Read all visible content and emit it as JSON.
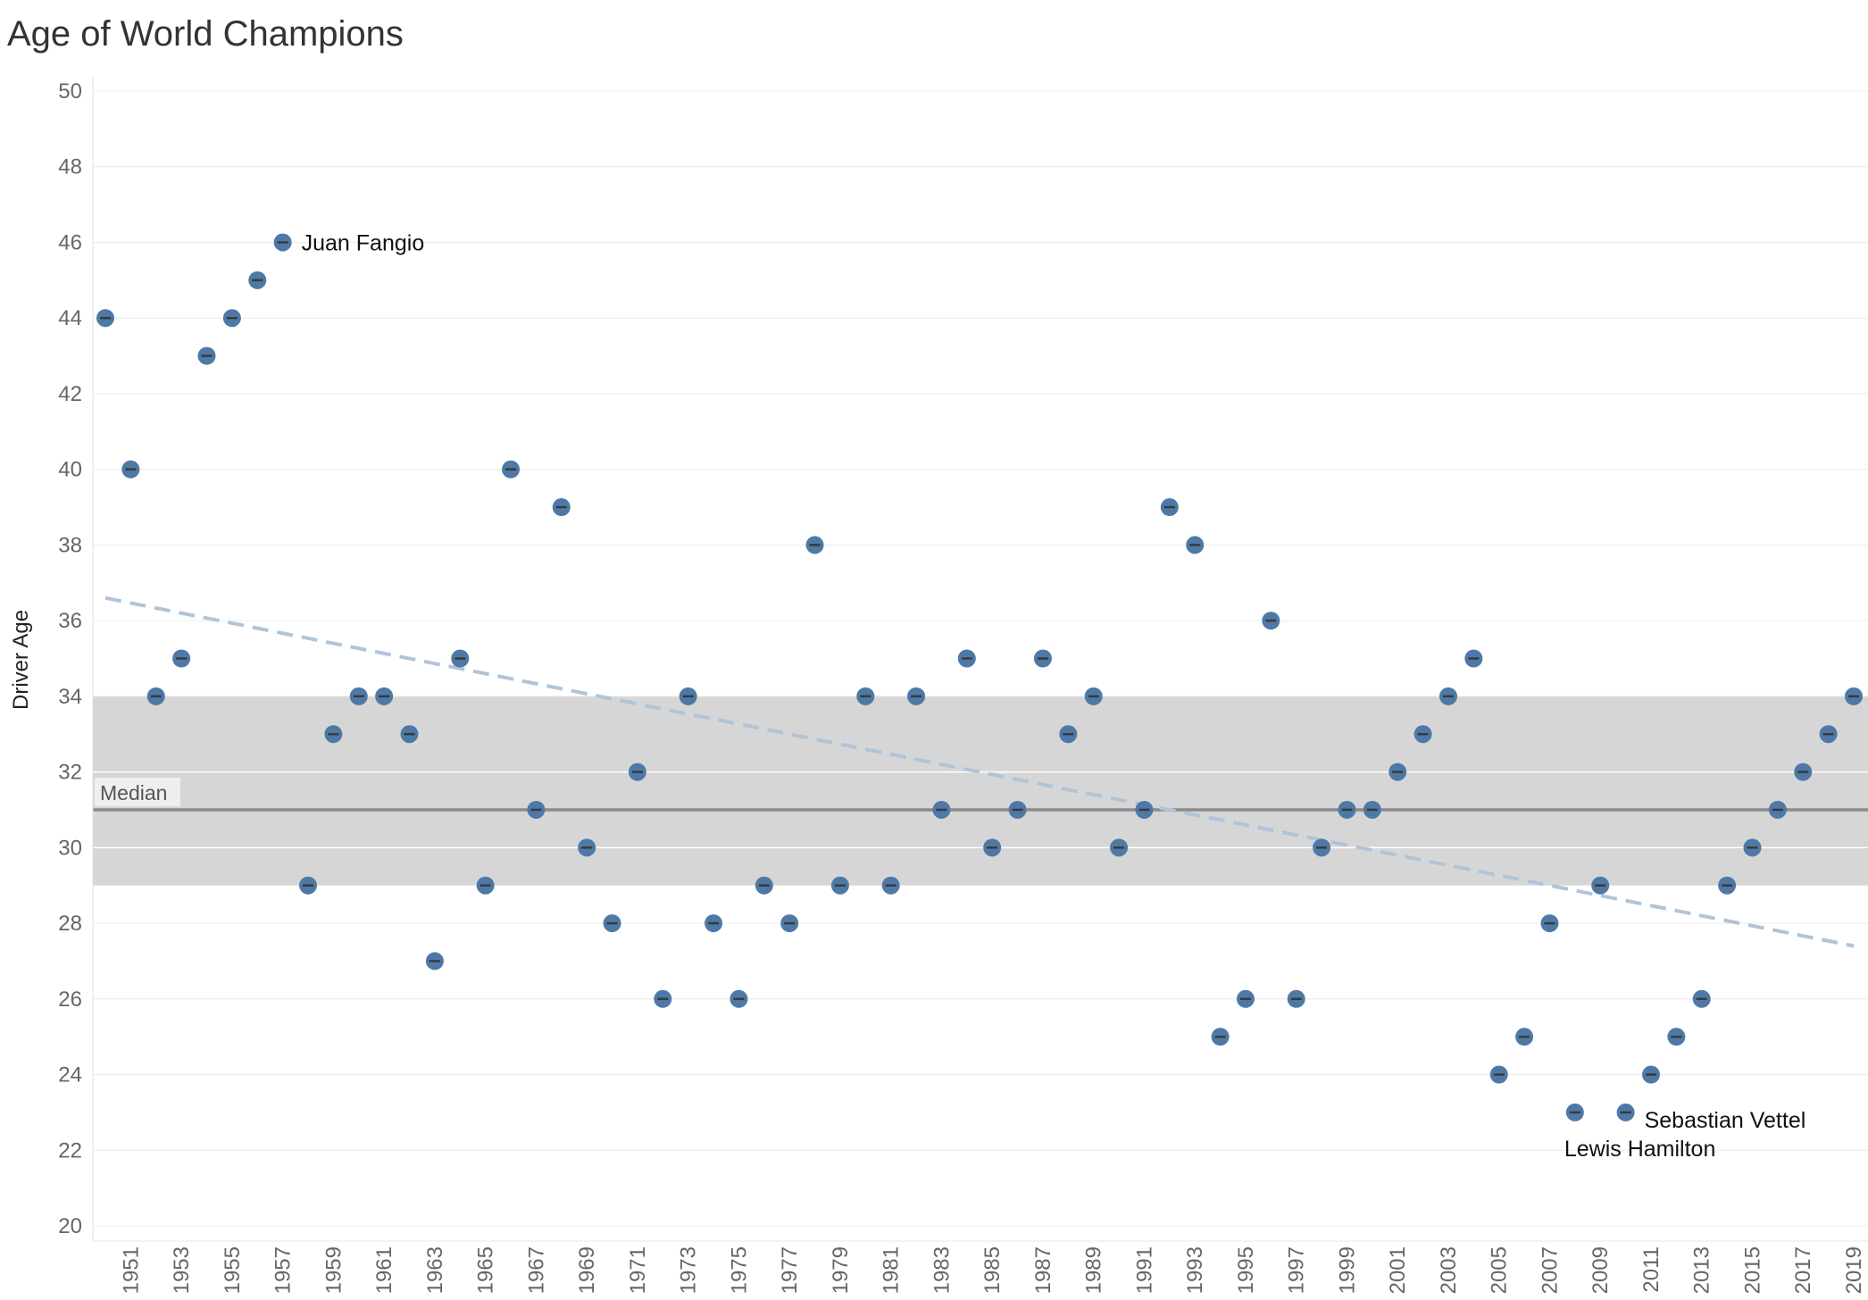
{
  "chart_data": {
    "type": "scatter",
    "title": "Age of World Champions",
    "ylabel": "Driver Age",
    "xlabel": "",
    "xlim": [
      1950,
      2019
    ],
    "ylim": [
      20,
      50
    ],
    "y_ticks": [
      20,
      22,
      24,
      26,
      28,
      30,
      32,
      34,
      36,
      38,
      40,
      42,
      44,
      46,
      48,
      50
    ],
    "x_ticks": [
      1951,
      1953,
      1955,
      1957,
      1959,
      1961,
      1963,
      1965,
      1967,
      1969,
      1971,
      1973,
      1975,
      1977,
      1979,
      1981,
      1983,
      1985,
      1987,
      1989,
      1991,
      1993,
      1995,
      1997,
      1999,
      2001,
      2003,
      2005,
      2007,
      2009,
      2011,
      2013,
      2015,
      2017,
      2019
    ],
    "grid": "horizontal",
    "points": [
      {
        "x": 1950,
        "y": 44
      },
      {
        "x": 1951,
        "y": 40
      },
      {
        "x": 1952,
        "y": 34
      },
      {
        "x": 1953,
        "y": 35
      },
      {
        "x": 1954,
        "y": 43
      },
      {
        "x": 1955,
        "y": 44
      },
      {
        "x": 1956,
        "y": 45
      },
      {
        "x": 1957,
        "y": 46
      },
      {
        "x": 1958,
        "y": 29
      },
      {
        "x": 1959,
        "y": 33
      },
      {
        "x": 1960,
        "y": 34
      },
      {
        "x": 1961,
        "y": 34
      },
      {
        "x": 1962,
        "y": 33
      },
      {
        "x": 1963,
        "y": 27
      },
      {
        "x": 1964,
        "y": 35
      },
      {
        "x": 1965,
        "y": 29
      },
      {
        "x": 1966,
        "y": 40
      },
      {
        "x": 1967,
        "y": 31
      },
      {
        "x": 1968,
        "y": 39
      },
      {
        "x": 1969,
        "y": 30
      },
      {
        "x": 1970,
        "y": 28
      },
      {
        "x": 1971,
        "y": 32
      },
      {
        "x": 1972,
        "y": 26
      },
      {
        "x": 1973,
        "y": 34
      },
      {
        "x": 1974,
        "y": 28
      },
      {
        "x": 1975,
        "y": 26
      },
      {
        "x": 1976,
        "y": 29
      },
      {
        "x": 1977,
        "y": 28
      },
      {
        "x": 1978,
        "y": 38
      },
      {
        "x": 1979,
        "y": 29
      },
      {
        "x": 1980,
        "y": 34
      },
      {
        "x": 1981,
        "y": 29
      },
      {
        "x": 1982,
        "y": 34
      },
      {
        "x": 1983,
        "y": 31
      },
      {
        "x": 1984,
        "y": 35
      },
      {
        "x": 1985,
        "y": 30
      },
      {
        "x": 1986,
        "y": 31
      },
      {
        "x": 1987,
        "y": 35
      },
      {
        "x": 1988,
        "y": 33
      },
      {
        "x": 1989,
        "y": 34
      },
      {
        "x": 1990,
        "y": 30
      },
      {
        "x": 1991,
        "y": 31
      },
      {
        "x": 1992,
        "y": 39
      },
      {
        "x": 1993,
        "y": 38
      },
      {
        "x": 1994,
        "y": 25
      },
      {
        "x": 1995,
        "y": 26
      },
      {
        "x": 1996,
        "y": 36
      },
      {
        "x": 1997,
        "y": 26
      },
      {
        "x": 1998,
        "y": 30
      },
      {
        "x": 1999,
        "y": 31
      },
      {
        "x": 2000,
        "y": 31
      },
      {
        "x": 2001,
        "y": 32
      },
      {
        "x": 2002,
        "y": 33
      },
      {
        "x": 2003,
        "y": 34
      },
      {
        "x": 2004,
        "y": 35
      },
      {
        "x": 2005,
        "y": 24
      },
      {
        "x": 2006,
        "y": 25
      },
      {
        "x": 2007,
        "y": 28
      },
      {
        "x": 2008,
        "y": 23
      },
      {
        "x": 2009,
        "y": 29
      },
      {
        "x": 2010,
        "y": 23
      },
      {
        "x": 2011,
        "y": 24
      },
      {
        "x": 2012,
        "y": 25
      },
      {
        "x": 2013,
        "y": 26
      },
      {
        "x": 2014,
        "y": 29
      },
      {
        "x": 2015,
        "y": 30
      },
      {
        "x": 2016,
        "y": 31
      },
      {
        "x": 2017,
        "y": 32
      },
      {
        "x": 2018,
        "y": 33
      },
      {
        "x": 2019,
        "y": 34
      }
    ],
    "annotations": [
      {
        "text": "Juan Fangio",
        "x": 1957,
        "y": 46
      },
      {
        "text": "Sebastian Vettel",
        "x": 2010,
        "y": 23
      },
      {
        "text": "Lewis Hamilton",
        "x": 2008,
        "y": 23
      }
    ],
    "reference_band": {
      "label": "Median",
      "low": 29,
      "high": 34,
      "median": 31
    },
    "trend_line": {
      "start": {
        "x": 1950,
        "y": 36.6
      },
      "end": {
        "x": 2019,
        "y": 27.4
      }
    },
    "colors": {
      "point": "#4e79a7",
      "trend": "#b0c4d8",
      "band": "#d6d6d6",
      "median_line": "#8c8c8c",
      "grid": "#ececec"
    }
  }
}
